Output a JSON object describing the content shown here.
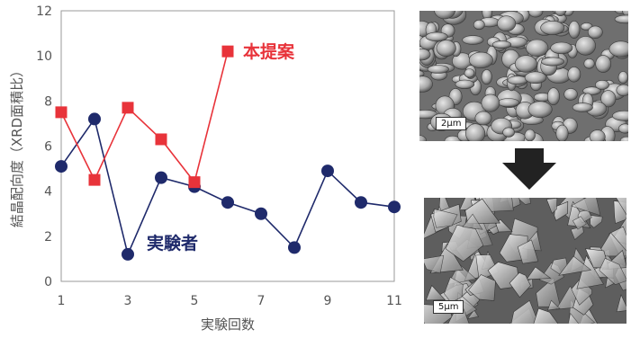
{
  "chart_data": {
    "type": "line",
    "xlabel": "実験回数",
    "ylabel": "結晶配向度（XRD面積比）",
    "xlim": [
      1,
      11
    ],
    "ylim": [
      0,
      12
    ],
    "x_ticks": [
      1,
      3,
      5,
      7,
      9,
      11
    ],
    "y_ticks": [
      0,
      2,
      4,
      6,
      8,
      10,
      12
    ],
    "grid": false,
    "series": [
      {
        "name": "本提案",
        "color": "#e8333a",
        "marker": "square",
        "x": [
          1,
          2,
          3,
          4,
          5,
          6
        ],
        "values": [
          7.5,
          4.5,
          7.7,
          6.3,
          4.4,
          10.2
        ]
      },
      {
        "name": "実験者",
        "color": "#1f2a6b",
        "marker": "circle",
        "x": [
          1,
          2,
          3,
          4,
          5,
          6,
          7,
          8,
          9,
          10,
          11
        ],
        "values": [
          5.1,
          7.2,
          1.2,
          4.6,
          4.2,
          3.5,
          3.0,
          1.5,
          4.9,
          3.5,
          3.3
        ]
      }
    ]
  },
  "images": [
    {
      "scale_label": "2μm"
    },
    {
      "scale_label": "5μm"
    }
  ],
  "colors": {
    "proposal": "#e8333a",
    "baseline": "#1f2a6b",
    "arrow": "#222222"
  }
}
